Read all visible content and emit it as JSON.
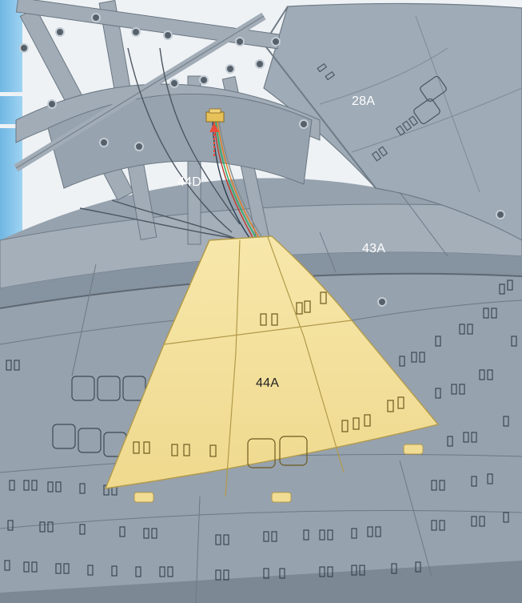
{
  "labels": {
    "part_28a": "28A",
    "part_44d": "44D",
    "part_43a": "43A",
    "part_44a": "44A"
  },
  "colors": {
    "background": "#eef2f5",
    "frame_grey": "#8e9aa5",
    "panel_grey": "#9ba7b3",
    "panel_light": "#a9b4bf",
    "highlight_yellow": "#f3e1a0",
    "yellow_outline": "#b29a4a",
    "accent_blue": "#7fc0e8",
    "label_light": "#ffffff",
    "label_dark": "#222222"
  },
  "icons": [
    "connector-plug-icon",
    "direction-arrow-icon",
    "wire-bundle-icon"
  ]
}
